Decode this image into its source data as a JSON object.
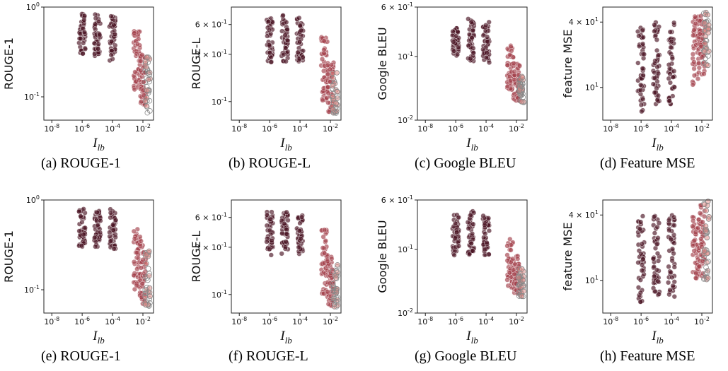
{
  "chart_data": [
    {
      "type": "scatter",
      "caption": "(a) ROUGE-1",
      "xlabel": "I_lb",
      "ylabel": "ROUGE-1",
      "xscale": "log",
      "yscale": "log",
      "xlim": [
        3e-09,
        0.05
      ],
      "ylim": [
        0.055,
        1.0
      ],
      "xticks": [
        "10^-8",
        "10^-6",
        "10^-4",
        "10^-2"
      ],
      "yticks": [
        {
          "v": 1.0,
          "label": "10^0"
        },
        {
          "v": 0.1,
          "label": "10^-1"
        }
      ],
      "clusters": [
        {
          "x": 1e-06,
          "y": [
            0.3,
            0.85
          ]
        },
        {
          "x": 1e-05,
          "y": [
            0.28,
            0.85
          ]
        },
        {
          "x": 0.0001,
          "y": [
            0.25,
            0.8
          ]
        },
        {
          "x": 0.004,
          "y": [
            0.12,
            0.55
          ]
        },
        {
          "x": 0.01,
          "y": [
            0.07,
            0.3
          ]
        },
        {
          "x": 0.02,
          "y": [
            0.065,
            0.3
          ],
          "open": true
        }
      ]
    },
    {
      "type": "scatter",
      "caption": "(b) ROUGE-L",
      "xlabel": "I_lb",
      "ylabel": "ROUGE-L",
      "xscale": "log",
      "yscale": "log",
      "xlim": [
        3e-09,
        0.05
      ],
      "ylim": [
        0.065,
        0.9
      ],
      "xticks": [
        "10^-8",
        "10^-6",
        "10^-4",
        "10^-2"
      ],
      "yticks": [
        {
          "v": 0.6,
          "label": "6 × 10^-1"
        },
        {
          "v": 0.3,
          "label": "3 × 10^-1"
        },
        {
          "v": 0.1,
          "label": "10^-1"
        }
      ],
      "clusters": [
        {
          "x": 1e-06,
          "y": [
            0.25,
            0.7
          ]
        },
        {
          "x": 1e-05,
          "y": [
            0.25,
            0.75
          ]
        },
        {
          "x": 0.0001,
          "y": [
            0.25,
            0.7
          ]
        },
        {
          "x": 0.004,
          "y": [
            0.1,
            0.45
          ]
        },
        {
          "x": 0.01,
          "y": [
            0.075,
            0.25
          ]
        },
        {
          "x": 0.02,
          "y": [
            0.075,
            0.2
          ],
          "open": true
        }
      ]
    },
    {
      "type": "scatter",
      "caption": "(c) Google BLEU",
      "xlabel": "I_lb",
      "ylabel": "Google BLEU",
      "xscale": "log",
      "yscale": "log",
      "xlim": [
        3e-09,
        0.05
      ],
      "ylim": [
        0.01,
        0.6
      ],
      "xticks": [
        "10^-8",
        "10^-6",
        "10^-4",
        "10^-2"
      ],
      "yticks": [
        {
          "v": 0.6,
          "label": "6 × 10^-1"
        },
        {
          "v": 0.1,
          "label": "10^-1"
        },
        {
          "v": 0.01,
          "label": "10^-2"
        }
      ],
      "clusters": [
        {
          "x": 1e-06,
          "y": [
            0.1,
            0.3
          ]
        },
        {
          "x": 1e-05,
          "y": [
            0.08,
            0.4
          ]
        },
        {
          "x": 0.0001,
          "y": [
            0.08,
            0.35
          ]
        },
        {
          "x": 0.004,
          "y": [
            0.03,
            0.15
          ]
        },
        {
          "x": 0.01,
          "y": [
            0.02,
            0.08
          ]
        },
        {
          "x": 0.02,
          "y": [
            0.018,
            0.05
          ],
          "open": true
        }
      ]
    },
    {
      "type": "scatter",
      "caption": "(d) Feature MSE",
      "xlabel": "I_lb",
      "ylabel": "feature MSE",
      "xscale": "log",
      "yscale": "log",
      "xlim": [
        3e-09,
        0.05
      ],
      "ylim": [
        5,
        55
      ],
      "xticks": [
        "10^-8",
        "10^-6",
        "10^-4",
        "10^-2"
      ],
      "yticks": [
        {
          "v": 40,
          "label": "4 × 10^1"
        },
        {
          "v": 10,
          "label": "10^1"
        }
      ],
      "clusters": [
        {
          "x": 1e-06,
          "y": [
            6,
            40
          ]
        },
        {
          "x": 1e-05,
          "y": [
            7,
            40
          ]
        },
        {
          "x": 0.0001,
          "y": [
            7,
            40
          ]
        },
        {
          "x": 0.004,
          "y": [
            10,
            45
          ]
        },
        {
          "x": 0.01,
          "y": [
            12,
            50
          ]
        },
        {
          "x": 0.02,
          "y": [
            15,
            50
          ],
          "open": true
        }
      ]
    },
    {
      "type": "scatter",
      "caption": "(e) ROUGE-1",
      "xlabel": "I_lb",
      "ylabel": "ROUGE-1",
      "xscale": "log",
      "yscale": "log",
      "xlim": [
        3e-09,
        0.05
      ],
      "ylim": [
        0.055,
        1.0
      ],
      "xticks": [
        "10^-8",
        "10^-6",
        "10^-4",
        "10^-2"
      ],
      "yticks": [
        {
          "v": 1.0,
          "label": "10^0"
        },
        {
          "v": 0.1,
          "label": "10^-1"
        }
      ],
      "clusters": [
        {
          "x": 1e-06,
          "y": [
            0.3,
            0.8
          ]
        },
        {
          "x": 1e-05,
          "y": [
            0.3,
            0.8
          ]
        },
        {
          "x": 0.0001,
          "y": [
            0.28,
            0.8
          ]
        },
        {
          "x": 0.004,
          "y": [
            0.1,
            0.5
          ]
        },
        {
          "x": 0.01,
          "y": [
            0.07,
            0.35
          ]
        },
        {
          "x": 0.02,
          "y": [
            0.065,
            0.3
          ],
          "open": true
        }
      ]
    },
    {
      "type": "scatter",
      "caption": "(f) ROUGE-L",
      "xlabel": "I_lb",
      "ylabel": "ROUGE-L",
      "xscale": "log",
      "yscale": "log",
      "xlim": [
        3e-09,
        0.05
      ],
      "ylim": [
        0.065,
        0.9
      ],
      "xticks": [
        "10^-8",
        "10^-6",
        "10^-4",
        "10^-2"
      ],
      "yticks": [
        {
          "v": 0.6,
          "label": "6 × 10^-1"
        },
        {
          "v": 0.3,
          "label": "3 × 10^-1"
        },
        {
          "v": 0.1,
          "label": "10^-1"
        }
      ],
      "clusters": [
        {
          "x": 1e-06,
          "y": [
            0.25,
            0.7
          ]
        },
        {
          "x": 1e-05,
          "y": [
            0.25,
            0.7
          ]
        },
        {
          "x": 0.0001,
          "y": [
            0.25,
            0.65
          ]
        },
        {
          "x": 0.004,
          "y": [
            0.1,
            0.45
          ]
        },
        {
          "x": 0.01,
          "y": [
            0.075,
            0.25
          ]
        },
        {
          "x": 0.02,
          "y": [
            0.075,
            0.2
          ],
          "open": true
        }
      ]
    },
    {
      "type": "scatter",
      "caption": "(g) Google BLEU",
      "xlabel": "I_lb",
      "ylabel": "Google BLEU",
      "xscale": "log",
      "yscale": "log",
      "xlim": [
        3e-09,
        0.05
      ],
      "ylim": [
        0.01,
        0.6
      ],
      "xticks": [
        "10^-8",
        "10^-6",
        "10^-4",
        "10^-2"
      ],
      "yticks": [
        {
          "v": 0.6,
          "label": "6 × 10^-1"
        },
        {
          "v": 0.1,
          "label": "10^-1"
        },
        {
          "v": 0.01,
          "label": "10^-2"
        }
      ],
      "clusters": [
        {
          "x": 1e-06,
          "y": [
            0.08,
            0.35
          ]
        },
        {
          "x": 1e-05,
          "y": [
            0.08,
            0.4
          ]
        },
        {
          "x": 0.0001,
          "y": [
            0.08,
            0.35
          ]
        },
        {
          "x": 0.004,
          "y": [
            0.025,
            0.15
          ]
        },
        {
          "x": 0.01,
          "y": [
            0.02,
            0.08
          ]
        },
        {
          "x": 0.02,
          "y": [
            0.018,
            0.05
          ],
          "open": true
        }
      ]
    },
    {
      "type": "scatter",
      "caption": "(h) Feature MSE",
      "xlabel": "I_lb",
      "ylabel": "feature MSE",
      "xscale": "log",
      "yscale": "log",
      "xlim": [
        3e-09,
        0.05
      ],
      "ylim": [
        5,
        55
      ],
      "xticks": [
        "10^-8",
        "10^-6",
        "10^-4",
        "10^-2"
      ],
      "yticks": [
        {
          "v": 40,
          "label": "4 × 10^1"
        },
        {
          "v": 10,
          "label": "10^1"
        }
      ],
      "clusters": [
        {
          "x": 1e-06,
          "y": [
            6,
            40
          ]
        },
        {
          "x": 1e-05,
          "y": [
            7,
            40
          ]
        },
        {
          "x": 0.0001,
          "y": [
            7,
            40
          ]
        },
        {
          "x": 0.004,
          "y": [
            10,
            45
          ]
        },
        {
          "x": 0.01,
          "y": [
            10,
            50
          ]
        },
        {
          "x": 0.02,
          "y": [
            10,
            55
          ],
          "open": true
        }
      ]
    }
  ],
  "colors": {
    "dark": "#4a1424",
    "mid": "#a3404c",
    "light": "#e08a86",
    "open_edge": "#888888",
    "frame": "#222222"
  }
}
